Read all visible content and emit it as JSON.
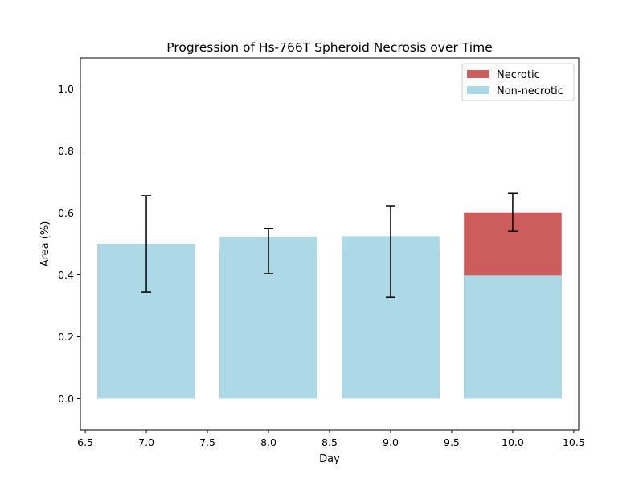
{
  "chart_data": {
    "type": "bar",
    "stacked": true,
    "title": "Progression of Hs-766T Spheroid Necrosis over Time",
    "xlabel": "Day",
    "ylabel": "Area (%)",
    "x": [
      7.0,
      8.0,
      9.0,
      10.0
    ],
    "xlim": [
      6.46,
      10.54
    ],
    "ylim": [
      -0.1,
      1.1
    ],
    "xticks": [
      6.5,
      7.0,
      7.5,
      8.0,
      8.5,
      9.0,
      9.5,
      10.0,
      10.5
    ],
    "xtick_labels": [
      "6.5",
      "7.0",
      "7.5",
      "8.0",
      "8.5",
      "9.0",
      "9.5",
      "10.0",
      "10.5"
    ],
    "yticks": [
      0.0,
      0.2,
      0.4,
      0.6,
      0.8,
      1.0
    ],
    "ytick_labels": [
      "0.0",
      "0.2",
      "0.4",
      "0.6",
      "0.8",
      "1.0"
    ],
    "bar_width": 0.8,
    "series": [
      {
        "name": "Necrotic",
        "color": "#cd5c5c",
        "values": [
          0.5,
          0.477,
          0.475,
          0.602
        ],
        "error": [
          0.156,
          0.073,
          0.147,
          0.061
        ]
      },
      {
        "name": "Non-necrotic",
        "color": "#add8e6",
        "values": [
          0.5,
          0.523,
          0.525,
          0.398
        ]
      }
    ],
    "grid": false,
    "legend": "top-right"
  }
}
